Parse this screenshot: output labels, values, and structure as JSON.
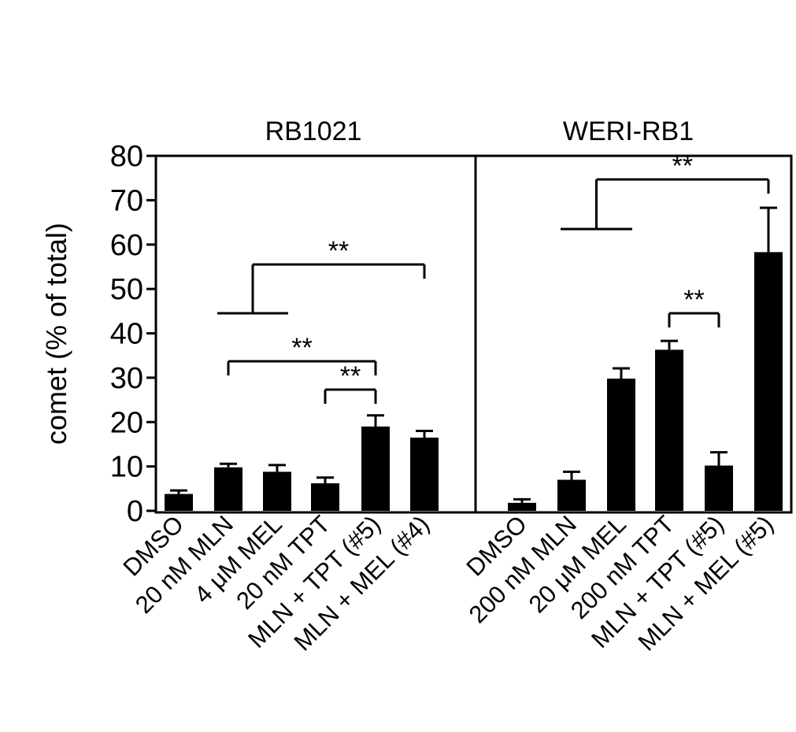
{
  "chart_data": [
    {
      "type": "bar",
      "title": "RB1021",
      "ylabel": "comet (% of total)",
      "ylim": [
        0,
        80
      ],
      "yticks": [
        "0",
        "10",
        "20",
        "30",
        "40",
        "50",
        "60",
        "70",
        "80"
      ],
      "categories": [
        "DMSO",
        "20 nM MLN",
        "4 μM MEL",
        "20 nM TPT",
        "MLN + TPT (#5)",
        "MLN +  MEL (#4)"
      ],
      "values": [
        3.8,
        9.8,
        8.8,
        6.2,
        19.0,
        16.5
      ],
      "errors": [
        0.8,
        0.8,
        1.5,
        1.3,
        2.5,
        1.5
      ],
      "significance": [
        {
          "label": "**",
          "from_group": [
            1,
            2
          ],
          "to": 5
        },
        {
          "label": "**",
          "from": 1,
          "to": 4
        },
        {
          "label": "**",
          "from": 3,
          "to": 4
        }
      ]
    },
    {
      "type": "bar",
      "title": "WERI-RB1",
      "ylim": [
        0,
        80
      ],
      "categories": [
        "DMSO",
        "200 nM MLN",
        "20 μM MEL",
        "200 nM TPT",
        "MLN + TPT (#5)",
        "MLN + MEL (#5)"
      ],
      "values": [
        1.8,
        7.0,
        29.8,
        36.3,
        10.2,
        58.3
      ],
      "errors": [
        0.8,
        1.8,
        2.3,
        2.0,
        3.0,
        10.0
      ],
      "significance": [
        {
          "label": "**",
          "from_group": [
            1,
            2
          ],
          "to": 5
        },
        {
          "label": "**",
          "from": 3,
          "to": 4
        }
      ]
    }
  ],
  "colors": {
    "bar": "#000000",
    "axis": "#000000"
  }
}
